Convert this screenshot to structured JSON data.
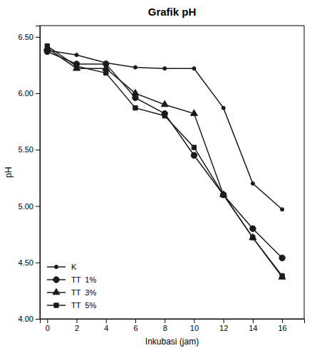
{
  "chart_data": {
    "type": "line",
    "title": "Grafik pH",
    "x_label": "Inkubasi (jam)",
    "y_label": "pH",
    "x": [
      0,
      2,
      4,
      6,
      8,
      10,
      12,
      14,
      16
    ],
    "xlim": [
      -0.5,
      17.5
    ],
    "ylim": [
      4.0,
      6.6
    ],
    "xticks": [
      0,
      2,
      4,
      6,
      8,
      10,
      12,
      14,
      16
    ],
    "yticks": [
      {
        "value": 4.0,
        "label": "4.00"
      },
      {
        "value": 4.5,
        "label": "4.50"
      },
      {
        "value": 5.0,
        "label": "5.00"
      },
      {
        "value": 5.5,
        "label": "5.50"
      },
      {
        "value": 6.0,
        "label": "6.00"
      },
      {
        "value": 6.5,
        "label": "6.50"
      }
    ],
    "series": [
      {
        "name": "K",
        "color": "#1a1a1a",
        "marker": "circle",
        "values": [
          6.38,
          6.34,
          6.27,
          6.23,
          6.22,
          6.22,
          5.87,
          5.2,
          4.97
        ]
      },
      {
        "name": "TT  1%",
        "color": "#1a1a1a",
        "marker": "circle",
        "values": [
          6.37,
          6.26,
          6.26,
          5.96,
          5.82,
          5.45,
          5.1,
          4.8,
          4.54
        ]
      },
      {
        "name": "TT  3%",
        "color": "#1a1a1a",
        "marker": "triangle",
        "values": [
          6.4,
          6.22,
          6.22,
          6.0,
          5.9,
          5.82,
          5.1,
          4.72,
          4.37
        ]
      },
      {
        "name": "TT  5%",
        "color": "#1a1a1a",
        "marker": "square",
        "values": [
          6.42,
          6.24,
          6.18,
          5.87,
          5.8,
          5.52,
          5.1,
          4.72,
          4.38
        ]
      }
    ],
    "grid": false,
    "legend": "lower left"
  }
}
